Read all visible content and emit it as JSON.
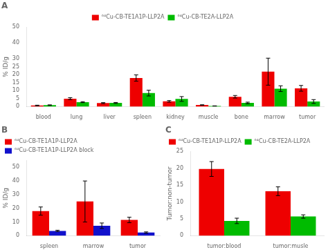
{
  "chart_data": [
    {
      "type": "bar",
      "title": "A",
      "categories": [
        "blood",
        "lung",
        "liver",
        "spleen",
        "kidney",
        "muscle",
        "bone",
        "marrow",
        "tumor"
      ],
      "series": [
        {
          "name": "⁶⁴Cu-CB-TE1A1P-LLP2A",
          "color": "#EE0000",
          "values": [
            0.7,
            5.0,
            2.2,
            18.0,
            3.3,
            1.0,
            6.2,
            22.0,
            11.5
          ],
          "errors": [
            0.2,
            0.6,
            0.3,
            2.0,
            0.5,
            0.15,
            0.8,
            8.5,
            1.8
          ]
        },
        {
          "name": "⁶⁴Cu-CB-TE2A-LLP2A",
          "color": "#00BB00",
          "values": [
            0.9,
            2.8,
            2.3,
            8.5,
            4.8,
            0.4,
            2.3,
            11.3,
            3.2
          ],
          "errors": [
            0.2,
            0.3,
            0.3,
            1.8,
            1.5,
            0.07,
            0.5,
            1.8,
            1.2
          ]
        }
      ],
      "ylabel": "% ID/g",
      "ylim": [
        0,
        50
      ],
      "yticks": [
        0,
        5,
        10,
        15,
        20,
        25,
        30,
        40,
        50
      ],
      "grid": false,
      "legend": "upper center"
    },
    {
      "type": "bar",
      "title": "B",
      "categories": [
        "spleen",
        "marrow",
        "tumor"
      ],
      "series": [
        {
          "name": "⁶⁴Cu-CB-TE1A1P-LLP2A",
          "color": "#EE0000",
          "values": [
            18.0,
            25.0,
            11.5
          ],
          "errors": [
            3.0,
            15.0,
            2.0
          ]
        },
        {
          "name": "⁶⁴Cu-CB-TE1A1P-LLP2A block",
          "color": "#1111CC",
          "values": [
            3.5,
            7.3,
            2.3
          ],
          "errors": [
            0.5,
            2.0,
            0.5
          ]
        }
      ],
      "ylabel": "% ID/g",
      "ylim": [
        0,
        55
      ],
      "yticks": [
        0,
        10,
        20,
        30,
        40,
        50
      ],
      "grid": false,
      "legend": "upper left"
    },
    {
      "type": "bar",
      "title": "C",
      "categories": [
        "tumor:blood",
        "tumor:musle"
      ],
      "series": [
        {
          "name": "⁶⁴Cu-CB-TE1A1P-LLP2A",
          "color": "#EE0000",
          "values": [
            19.8,
            13.2
          ],
          "errors": [
            2.2,
            1.3
          ]
        },
        {
          "name": "⁶⁴Cu-CB-TE2A-LLP2A",
          "color": "#00BB00",
          "values": [
            4.4,
            5.7
          ],
          "errors": [
            0.8,
            0.5
          ]
        }
      ],
      "ylabel": "Tumor:non-tumor",
      "ylim": [
        0,
        25
      ],
      "yticks": [
        0,
        5,
        10,
        15,
        20,
        25
      ],
      "grid": false,
      "legend": "upper left"
    }
  ]
}
